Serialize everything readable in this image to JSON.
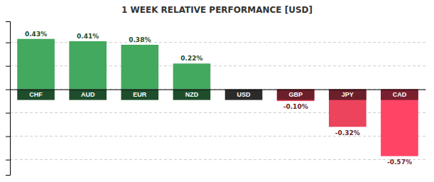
{
  "chart_data": {
    "type": "bar",
    "title": "1 WEEK RELATIVE PERFORMANCE [USD]",
    "categories": [
      "CHF",
      "AUD",
      "EUR",
      "NZD",
      "USD",
      "GBP",
      "JPY",
      "CAD"
    ],
    "values": [
      0.43,
      0.41,
      0.38,
      0.22,
      0.0,
      -0.1,
      -0.32,
      -0.57
    ],
    "value_labels": [
      "0.43%",
      "0.41%",
      "0.38%",
      "0.22%",
      null,
      "-0.10%",
      "-0.32%",
      "-0.57%"
    ],
    "colors": [
      "#1e4d2b",
      "#1e4d2b",
      "#1e4d2b",
      "#1e4d2b",
      "#2b2b2b",
      "#6b1f2a",
      "#6b1f2a",
      "#7a1f2e"
    ],
    "ylim": [
      -0.73,
      0.58
    ],
    "yticks": [
      0.4,
      0.2,
      0.0,
      -0.2,
      -0.4,
      -0.6
    ],
    "grid": true,
    "data_labels": true,
    "tick_labels": "x"
  }
}
